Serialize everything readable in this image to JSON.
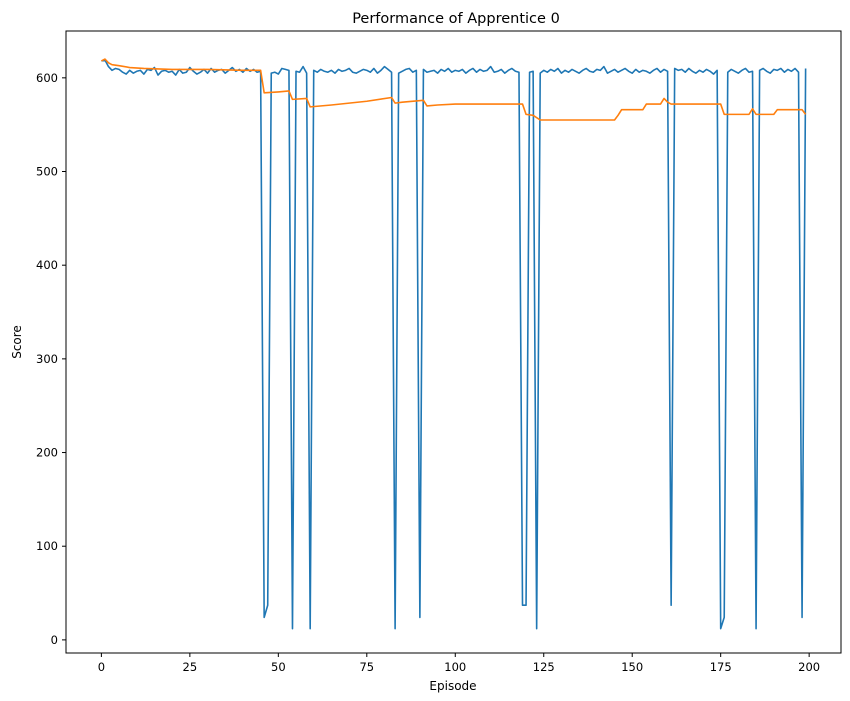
{
  "chart_data": {
    "type": "line",
    "title": "Performance of Apprentice 0",
    "xlabel": "Episode",
    "ylabel": "Score",
    "xlim": [
      -10,
      209
    ],
    "ylim": [
      -14,
      650
    ],
    "xticks": [
      0,
      25,
      50,
      75,
      100,
      125,
      150,
      175,
      200
    ],
    "yticks": [
      0,
      100,
      200,
      300,
      400,
      500,
      600
    ],
    "xtick_labels": [
      "0",
      "25",
      "50",
      "75",
      "100",
      "125",
      "150",
      "175",
      "200"
    ],
    "ytick_labels": [
      "0",
      "100",
      "200",
      "300",
      "400",
      "500",
      "600"
    ],
    "grid": false,
    "series": [
      {
        "color": "#1f77b4",
        "x": [
          0,
          1,
          2,
          3,
          4,
          5,
          6,
          7,
          8,
          9,
          10,
          11,
          12,
          13,
          14,
          15,
          16,
          17,
          18,
          19,
          20,
          21,
          22,
          23,
          24,
          25,
          26,
          27,
          28,
          29,
          30,
          31,
          32,
          33,
          34,
          35,
          36,
          37,
          38,
          39,
          40,
          41,
          42,
          43,
          44,
          45,
          46,
          47,
          48,
          49,
          50,
          51,
          52,
          53,
          54,
          55,
          56,
          57,
          58,
          59,
          60,
          61,
          62,
          63,
          64,
          65,
          66,
          67,
          68,
          69,
          70,
          71,
          72,
          73,
          74,
          75,
          76,
          77,
          78,
          79,
          80,
          81,
          82,
          83,
          84,
          85,
          86,
          87,
          88,
          89,
          90,
          91,
          92,
          93,
          94,
          95,
          96,
          97,
          98,
          99,
          100,
          101,
          102,
          103,
          104,
          105,
          106,
          107,
          108,
          109,
          110,
          111,
          112,
          113,
          114,
          115,
          116,
          117,
          118,
          119,
          120,
          121,
          122,
          123,
          124,
          125,
          126,
          127,
          128,
          129,
          130,
          131,
          132,
          133,
          134,
          135,
          136,
          137,
          138,
          139,
          140,
          141,
          142,
          143,
          144,
          145,
          146,
          147,
          148,
          149,
          150,
          151,
          152,
          153,
          154,
          155,
          156,
          157,
          158,
          159,
          160,
          161,
          162,
          163,
          164,
          165,
          166,
          167,
          168,
          169,
          170,
          171,
          172,
          173,
          174,
          175,
          176,
          177,
          178,
          179,
          180,
          181,
          182,
          183,
          184,
          185,
          186,
          187,
          188,
          189,
          190,
          191,
          192,
          193,
          194,
          195,
          196,
          197,
          198,
          199
        ],
        "y": [
          618,
          619,
          612,
          608,
          610,
          609,
          606,
          604,
          608,
          605,
          607,
          608,
          604,
          609,
          608,
          611,
          603,
          607,
          608,
          606,
          607,
          603,
          609,
          605,
          606,
          611,
          607,
          604,
          606,
          609,
          605,
          610,
          606,
          608,
          609,
          605,
          608,
          611,
          607,
          609,
          606,
          610,
          607,
          609,
          606,
          607,
          24,
          37,
          605,
          606,
          604,
          610,
          609,
          608,
          12,
          607,
          606,
          612,
          605,
          12,
          608,
          606,
          609,
          607,
          606,
          608,
          605,
          609,
          607,
          608,
          610,
          606,
          605,
          607,
          609,
          608,
          606,
          610,
          605,
          608,
          612,
          609,
          606,
          12,
          605,
          607,
          609,
          610,
          606,
          608,
          24,
          609,
          606,
          607,
          608,
          605,
          609,
          607,
          610,
          606,
          608,
          607,
          609,
          605,
          608,
          610,
          606,
          609,
          607,
          608,
          612,
          606,
          607,
          609,
          605,
          608,
          610,
          607,
          606,
          37,
          37,
          606,
          607,
          12,
          605,
          608,
          606,
          609,
          607,
          610,
          605,
          608,
          606,
          609,
          607,
          605,
          608,
          610,
          607,
          606,
          609,
          608,
          612,
          605,
          607,
          609,
          606,
          608,
          610,
          607,
          605,
          609,
          606,
          608,
          607,
          605,
          608,
          610,
          606,
          609,
          607,
          37,
          610,
          608,
          609,
          606,
          610,
          607,
          605,
          608,
          606,
          609,
          607,
          604,
          608,
          12,
          24,
          606,
          609,
          607,
          605,
          608,
          610,
          606,
          607,
          12,
          608,
          610,
          607,
          605,
          609,
          608,
          610,
          606,
          609,
          607,
          610,
          606,
          24,
          610
        ]
      },
      {
        "color": "#ff7f0e",
        "x": [
          0,
          1,
          2,
          3,
          5,
          8,
          12,
          20,
          30,
          40,
          45,
          46,
          50,
          53,
          54,
          58,
          59,
          65,
          70,
          75,
          82,
          83,
          85,
          91,
          92,
          95,
          100,
          105,
          110,
          115,
          119,
          120,
          122,
          124,
          125,
          130,
          135,
          140,
          145,
          146,
          147,
          150,
          153,
          154,
          155,
          158,
          159,
          160,
          161,
          165,
          170,
          174,
          175,
          176,
          180,
          183,
          184,
          185,
          190,
          191,
          195,
          198,
          199
        ],
        "y": [
          618,
          620,
          616,
          614,
          613,
          611,
          610,
          609,
          609,
          608,
          608,
          584,
          585,
          586,
          577,
          578,
          569,
          571,
          573,
          575,
          579,
          573,
          574,
          576,
          570,
          571,
          572,
          572,
          572,
          572,
          572,
          561,
          560,
          555,
          555,
          555,
          555,
          555,
          555,
          560,
          566,
          566,
          566,
          572,
          572,
          572,
          578,
          574,
          572,
          572,
          572,
          572,
          572,
          561,
          561,
          561,
          567,
          561,
          561,
          566,
          566,
          566,
          561
        ]
      }
    ]
  }
}
